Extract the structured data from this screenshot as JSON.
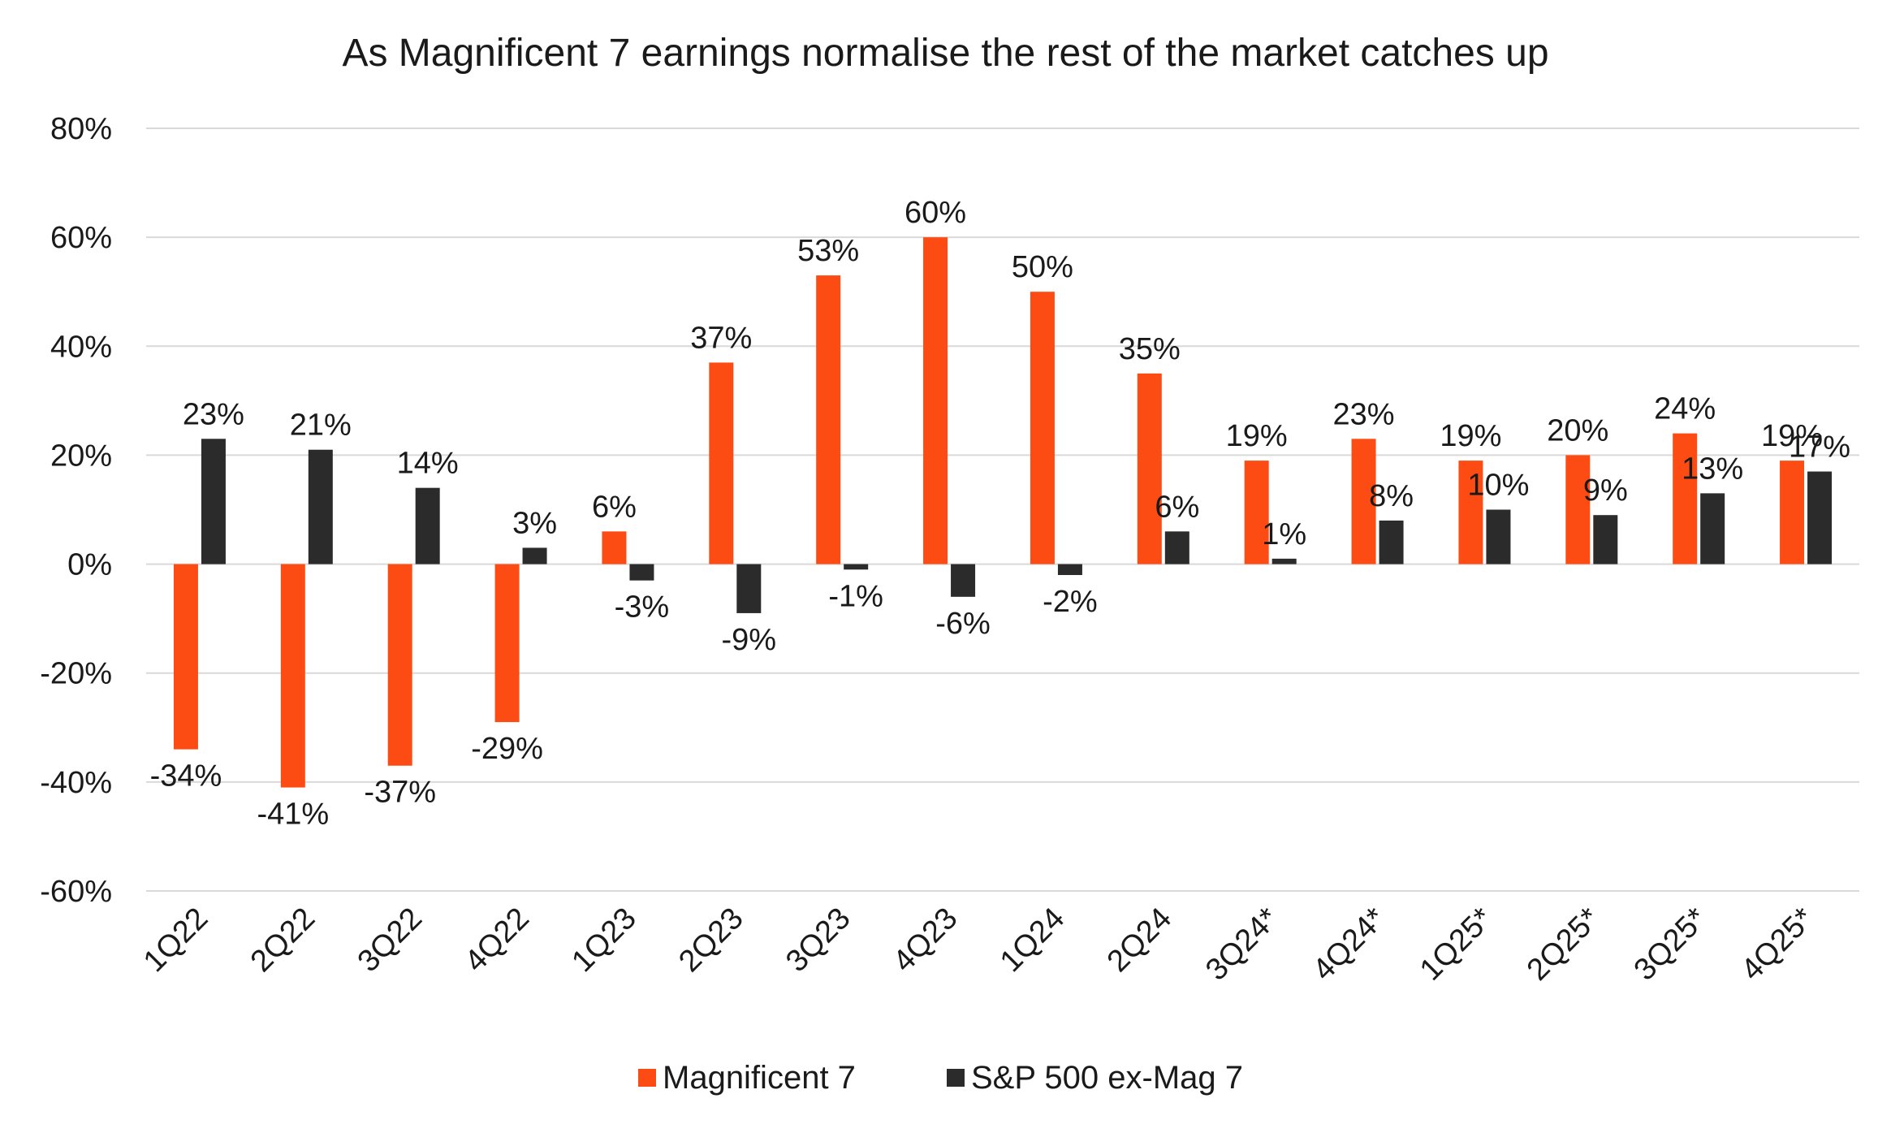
{
  "chart_data": {
    "type": "bar",
    "title": "As Magnificent 7 earnings normalise the rest of the market catches up",
    "xlabel": "",
    "ylabel": "",
    "categories": [
      "1Q22",
      "2Q22",
      "3Q22",
      "4Q22",
      "1Q23",
      "2Q23",
      "3Q23",
      "4Q23",
      "1Q24",
      "2Q24",
      "3Q24*",
      "4Q24*",
      "1Q25*",
      "2Q25*",
      "3Q25*",
      "4Q25*"
    ],
    "series": [
      {
        "name": "Magnificent 7",
        "color": "#fc4c14",
        "values": [
          -34,
          -41,
          -37,
          -29,
          6,
          37,
          53,
          60,
          50,
          35,
          19,
          23,
          19,
          20,
          24,
          19
        ]
      },
      {
        "name": "S&P 500 ex-Mag 7",
        "color": "#2b2b2b",
        "values": [
          23,
          21,
          14,
          3,
          -3,
          -9,
          -1,
          -6,
          -2,
          6,
          1,
          8,
          10,
          9,
          13,
          17
        ]
      }
    ],
    "ylim": [
      -60,
      80
    ],
    "yticks": [
      -60,
      -40,
      -20,
      0,
      20,
      40,
      60,
      80
    ],
    "ytick_labels": [
      "-60%",
      "-40%",
      "-20%",
      "0%",
      "20%",
      "40%",
      "60%",
      "80%"
    ],
    "value_suffix": "%",
    "grid": true,
    "legend": "bottom"
  }
}
